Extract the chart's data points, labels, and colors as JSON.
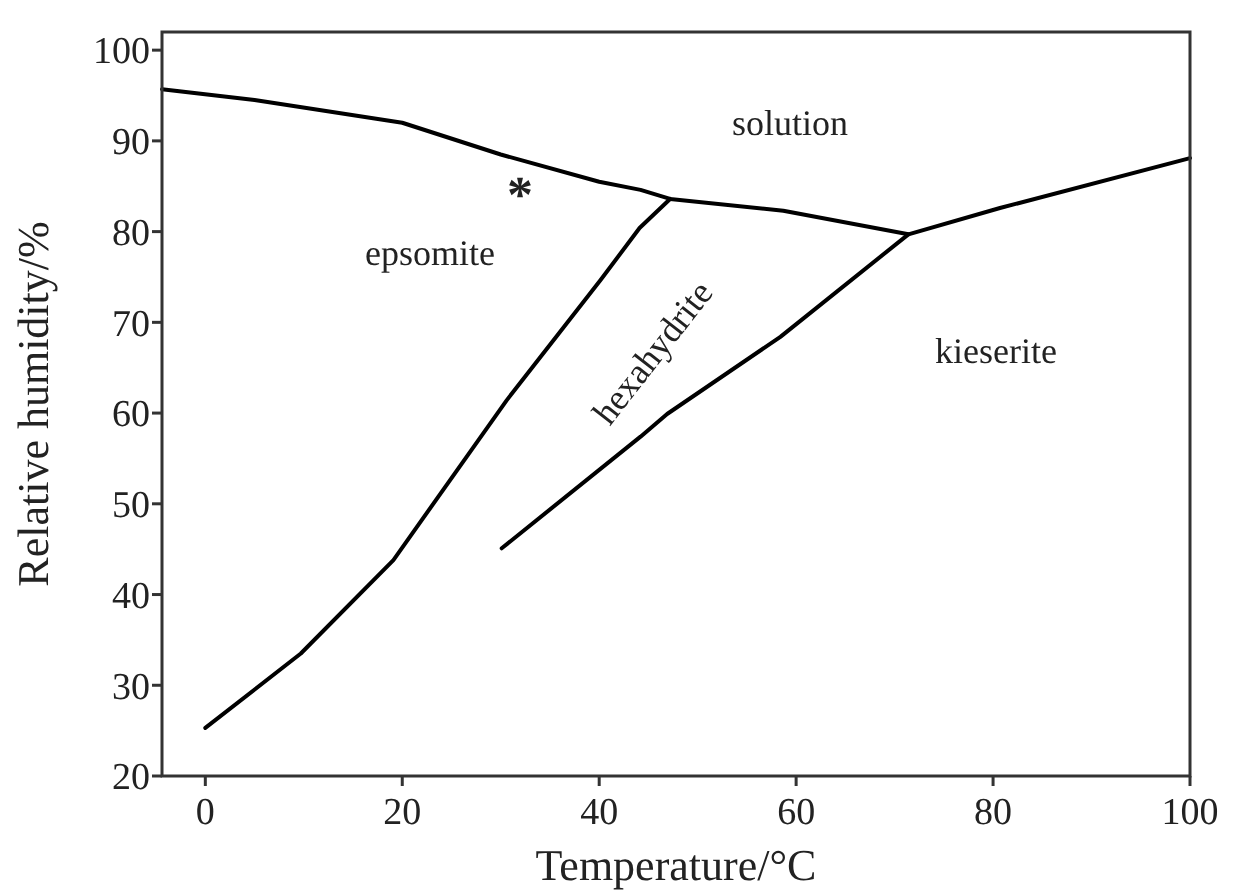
{
  "chart_data": {
    "type": "line",
    "xlabel": "Temperature/°C",
    "ylabel": "Relative humidity/%",
    "xlim": [
      -4.4,
      100
    ],
    "xticks": [
      0,
      20,
      40,
      60,
      80,
      100
    ],
    "ylim": [
      20,
      102
    ],
    "yticks": [
      20,
      30,
      40,
      50,
      60,
      70,
      80,
      90,
      100
    ],
    "grid": false,
    "marker": "none",
    "line_style": "solid",
    "series": [
      {
        "color": "#000000",
        "x": [
          -4.4,
          5,
          20,
          30,
          40,
          44.2,
          47.2,
          58.7,
          71.4,
          80.7,
          100
        ],
        "values": [
          95.7,
          94.5,
          92.0,
          88.5,
          85.5,
          84.6,
          83.6,
          82.3,
          79.7,
          82.6,
          88.1
        ]
      },
      {
        "color": "#000000",
        "x": [
          0,
          9.7,
          19.1,
          30.6,
          40.1,
          44.1,
          47.2
        ],
        "values": [
          25.3,
          33.5,
          43.8,
          61.4,
          74.6,
          80.4,
          83.6
        ]
      },
      {
        "color": "#000000",
        "x": [
          30.1,
          44.2,
          46.9,
          58.4,
          71.4
        ],
        "values": [
          45.1,
          57.4,
          59.9,
          68.4,
          79.7
        ]
      }
    ],
    "annotations": [
      "solution",
      "epsomite",
      "hexahydrite",
      "kieserite",
      "*"
    ]
  }
}
